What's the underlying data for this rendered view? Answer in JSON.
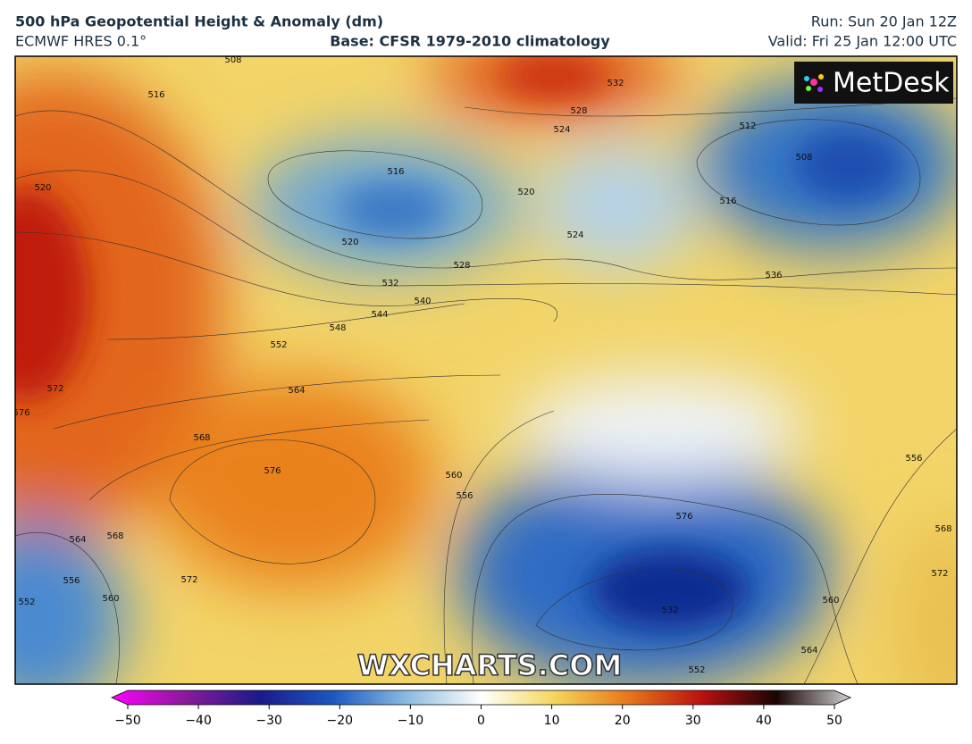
{
  "header": {
    "title": "500 hPa Geopotential Height & Anomaly (dm)",
    "model": "ECMWF HRES 0.1°",
    "base": "Base: CFSR 1979-2010 climatology",
    "run": "Run: Sun 20 Jan 12Z",
    "valid": "Valid: Fri 25 Jan 12:00 UTC"
  },
  "logo": "MetDesk",
  "watermark": "WXCHARTS.COM",
  "contour_labels": [
    516,
    508,
    520,
    516,
    520,
    528,
    532,
    540,
    544,
    548,
    552,
    564,
    568,
    576,
    572,
    576,
    564,
    568,
    556,
    560,
    552,
    572,
    532,
    528,
    524,
    520,
    524,
    512,
    508,
    516,
    536,
    556,
    568,
    572,
    560,
    564,
    552,
    532,
    560,
    556,
    576
  ],
  "colorbar": {
    "ticks": [
      {
        "value": -50,
        "label": "−50"
      },
      {
        "value": -40,
        "label": "−40"
      },
      {
        "value": -30,
        "label": "−30"
      },
      {
        "value": -20,
        "label": "−20"
      },
      {
        "value": -10,
        "label": "−10"
      },
      0,
      10,
      20,
      30,
      40,
      50
    ],
    "lim": [
      -50,
      50
    ]
  }
}
